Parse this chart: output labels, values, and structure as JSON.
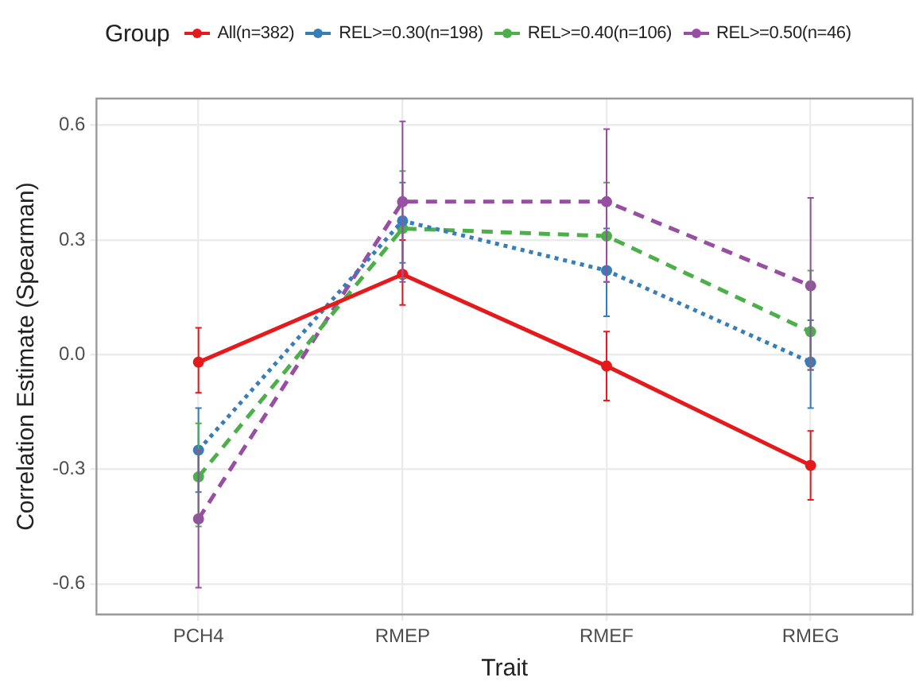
{
  "chart_data": {
    "type": "line",
    "xlabel": "Trait",
    "ylabel": "Correlation Estimate (Spearman)",
    "legend_title": "Group",
    "legend": "top",
    "grid": true,
    "marker": "circle",
    "categories": [
      "PCH4",
      "RMEP",
      "RMEF",
      "RMEG"
    ],
    "ylim": [
      -0.68,
      0.67
    ],
    "yticks": [
      {
        "value": -0.6,
        "label": "-0.6"
      },
      {
        "value": -0.3,
        "label": "-0.3"
      },
      {
        "value": 0,
        "label": "0.0"
      },
      {
        "value": 0.3,
        "label": "0.3"
      },
      {
        "value": 0.6,
        "label": "0.6"
      }
    ],
    "series": [
      {
        "name": "All(n=382)",
        "color": "#e41a1c",
        "line_style": "solid",
        "values": [
          -0.02,
          0.21,
          -0.03,
          -0.29
        ],
        "errors": [
          [
            -0.1,
            0.07
          ],
          [
            0.13,
            0.3
          ],
          [
            -0.12,
            0.06
          ],
          [
            -0.38,
            -0.2
          ]
        ]
      },
      {
        "name": "REL>=0.30(n=198)",
        "color": "#377eb8",
        "line_style": "dotted",
        "values": [
          -0.25,
          0.35,
          0.22,
          -0.02
        ],
        "errors": [
          [
            -0.36,
            -0.14
          ],
          [
            0.24,
            0.45
          ],
          [
            0.1,
            0.33
          ],
          [
            -0.14,
            0.09
          ]
        ]
      },
      {
        "name": "REL>=0.40(n=106)",
        "color": "#4daf4a",
        "line_style": "dashed",
        "values": [
          -0.32,
          0.33,
          0.31,
          0.06
        ],
        "errors": [
          [
            -0.45,
            -0.18
          ],
          [
            0.2,
            0.48
          ],
          [
            0.19,
            0.45
          ],
          [
            -0.04,
            0.22
          ]
        ]
      },
      {
        "name": "REL>=0.50(n=46)",
        "color": "#984ea3",
        "line_style": "dashed",
        "values": [
          -0.43,
          0.4,
          0.4,
          0.18
        ],
        "errors": [
          [
            -0.61,
            -0.25
          ],
          [
            0.19,
            0.61
          ],
          [
            0.19,
            0.59
          ],
          [
            -0.04,
            0.41
          ]
        ]
      }
    ]
  }
}
